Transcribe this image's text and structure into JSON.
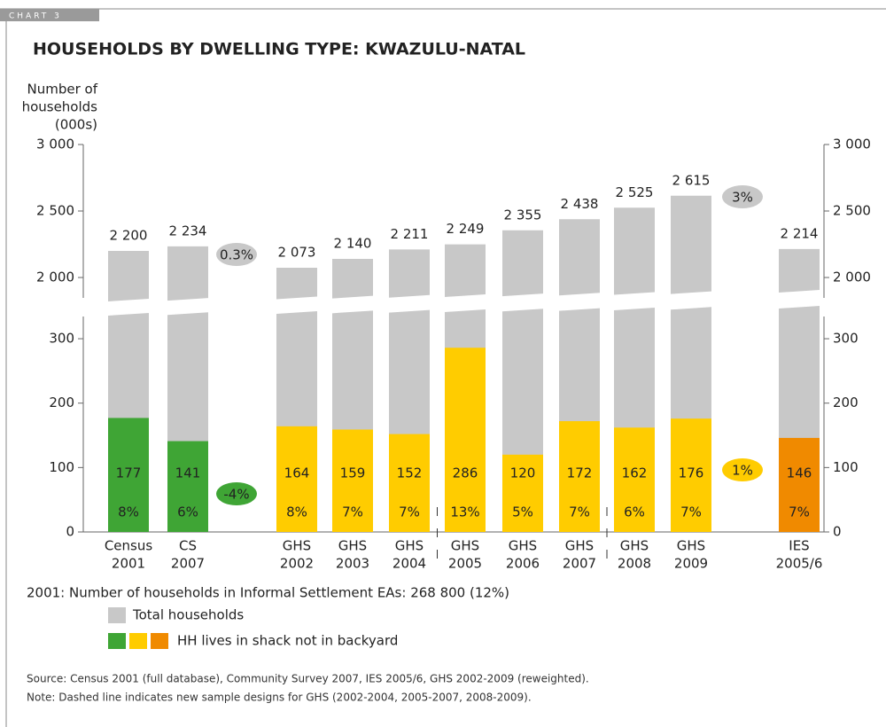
{
  "chart_label": "CHART 3",
  "chart_data": {
    "type": "bar",
    "title": "HOUSEHOLDS BY DWELLING TYPE: KWAZULU-NATAL",
    "ylabel": [
      "Number of",
      "households",
      "(000s)"
    ],
    "categories": [
      [
        "Census",
        "2001"
      ],
      [
        "CS",
        "2007"
      ],
      [
        "GHS",
        "2002"
      ],
      [
        "GHS",
        "2003"
      ],
      [
        "GHS",
        "2004"
      ],
      [
        "GHS",
        "2005"
      ],
      [
        "GHS",
        "2006"
      ],
      [
        "GHS",
        "2007"
      ],
      [
        "GHS",
        "2008"
      ],
      [
        "GHS",
        "2009"
      ],
      [
        "IES",
        "2005/6"
      ]
    ],
    "series": [
      {
        "name": "Total households",
        "color": "#c8c8c8",
        "values": [
          2200,
          2234,
          2073,
          2140,
          2211,
          2249,
          2355,
          2438,
          2525,
          2615,
          2214
        ],
        "value_labels": [
          "2 200",
          "2 234",
          "2 073",
          "2 140",
          "2 211",
          "2 249",
          "2 355",
          "2 438",
          "2 525",
          "2 615",
          "2 214"
        ]
      },
      {
        "name": "HH lives in shack not in backyard",
        "colors": [
          "#3fa535",
          "#3fa535",
          "#ffcc00",
          "#ffcc00",
          "#ffcc00",
          "#ffcc00",
          "#ffcc00",
          "#ffcc00",
          "#ffcc00",
          "#ffcc00",
          "#f08a00"
        ],
        "values": [
          177,
          141,
          164,
          159,
          152,
          286,
          120,
          172,
          162,
          176,
          146
        ],
        "shares": [
          8,
          6,
          8,
          7,
          7,
          13,
          5,
          7,
          6,
          7,
          7
        ],
        "share_labels": [
          "8%",
          "6%",
          "8%",
          "7%",
          "7%",
          "13%",
          "5%",
          "7%",
          "6%",
          "7%",
          "7%"
        ]
      }
    ],
    "ylim": [
      0,
      340
    ],
    "yticks": [
      0,
      100,
      200,
      300
    ],
    "ylim_upper": [
      1820,
      3000
    ],
    "yticks_upper": [
      {
        "value": 2000,
        "label": "2 000"
      },
      {
        "value": 2500,
        "label": "2 500"
      },
      {
        "value": 3000,
        "label": "3 000"
      }
    ],
    "annotations": [
      {
        "text": "0.3%",
        "color": "#c8c8c8"
      },
      {
        "text": "-4%",
        "color": "#3fa535"
      },
      {
        "text": "3%",
        "color": "#c8c8c8"
      },
      {
        "text": "1%",
        "color": "#ffcc00"
      }
    ],
    "note": "2001: Number of households in Informal Settlement EAs: 268 800 (12%)"
  },
  "source": [
    "Source: Census 2001 (full database), Community Survey 2007, IES 2005/6, GHS 2002-2009 (reweighted).",
    "Note: Dashed line indicates new sample designs for GHS (2002-2004, 2005-2007, 2008-2009)."
  ]
}
